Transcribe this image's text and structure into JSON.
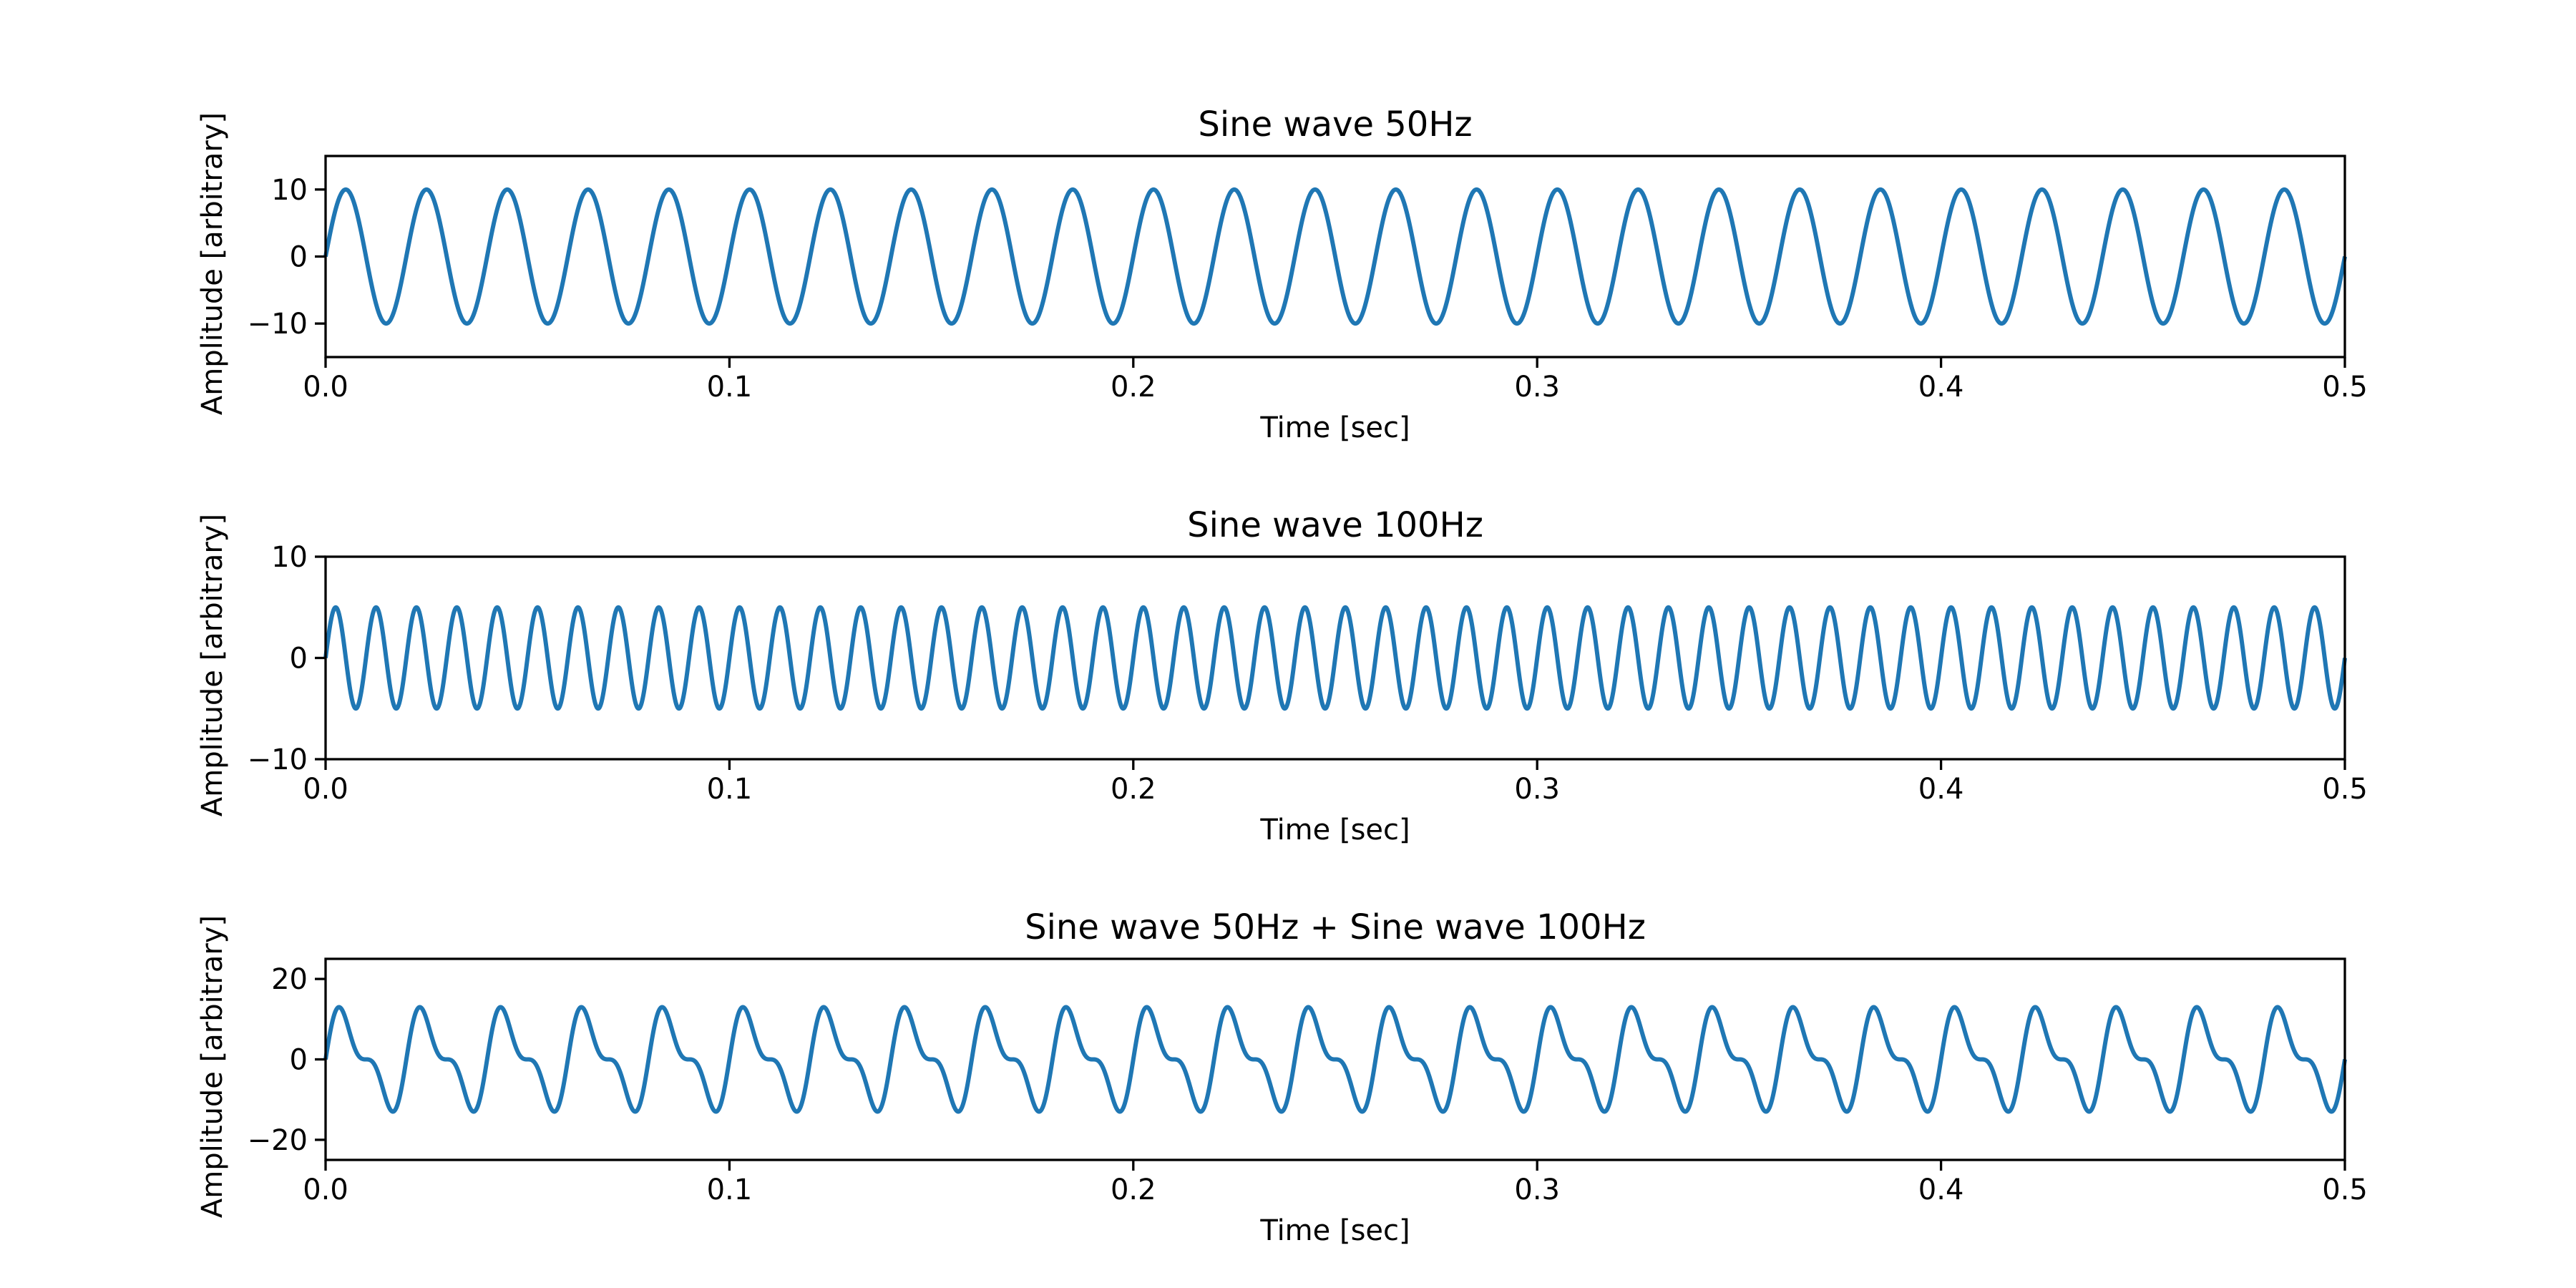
{
  "chart_data": [
    {
      "type": "line",
      "title": "Sine wave 50Hz",
      "xlabel": "Time [sec]",
      "ylabel": "Amplitude [arbitrary]",
      "xlim": [
        0,
        0.5
      ],
      "ylim": [
        -15,
        15
      ],
      "xticks": [
        "0.0",
        "0.1",
        "0.2",
        "0.3",
        "0.4",
        "0.5"
      ],
      "yticks": [
        "10",
        "0",
        "−10"
      ],
      "ytick_values": [
        10,
        0,
        -10
      ],
      "series": [
        {
          "name": "Sine wave 50Hz",
          "components": [
            {
              "amplitude": 10,
              "frequency_hz": 50
            }
          ],
          "color": "#1f77b4"
        }
      ]
    },
    {
      "type": "line",
      "title": "Sine wave 100Hz",
      "xlabel": "Time [sec]",
      "ylabel": "Amplitude [arbitrary]",
      "xlim": [
        0,
        0.5
      ],
      "ylim": [
        -10,
        10
      ],
      "xticks": [
        "0.0",
        "0.1",
        "0.2",
        "0.3",
        "0.4",
        "0.5"
      ],
      "yticks": [
        "10",
        "0",
        "−10"
      ],
      "ytick_values": [
        10,
        0,
        -10
      ],
      "series": [
        {
          "name": "Sine wave 100Hz",
          "components": [
            {
              "amplitude": 5,
              "frequency_hz": 100
            }
          ],
          "color": "#1f77b4"
        }
      ]
    },
    {
      "type": "line",
      "title": "Sine wave 50Hz + Sine wave 100Hz",
      "xlabel": "Time [sec]",
      "ylabel": "Amplitude [arbitrary]",
      "xlim": [
        0,
        0.5
      ],
      "ylim": [
        -25,
        25
      ],
      "xticks": [
        "0.0",
        "0.1",
        "0.2",
        "0.3",
        "0.4",
        "0.5"
      ],
      "yticks": [
        "20",
        "0",
        "−20"
      ],
      "ytick_values": [
        20,
        0,
        -20
      ],
      "series": [
        {
          "name": "Sine wave 50Hz + Sine wave 100Hz",
          "components": [
            {
              "amplitude": 10,
              "frequency_hz": 50
            },
            {
              "amplitude": 5,
              "frequency_hz": 100
            }
          ],
          "color": "#1f77b4"
        }
      ]
    }
  ]
}
